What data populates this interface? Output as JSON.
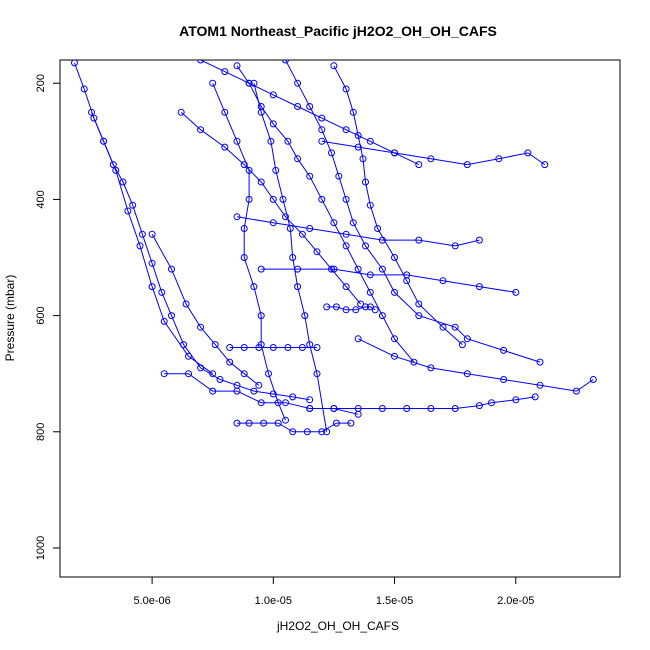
{
  "chart_data": {
    "type": "scatter",
    "title": "ATOM1 Northeast_Pacific jH2O2_OH_OH_CAFS",
    "xlabel": "jH2O2_OH_OH_CAFS",
    "ylabel": "Pressure (mbar)",
    "xlim": [
      1.2e-06,
      2.43e-05
    ],
    "ylim": [
      1050,
      160
    ],
    "y_reversed": true,
    "x_ticks": [
      {
        "value": 5e-06,
        "label": "5.0e-06"
      },
      {
        "value": 1e-05,
        "label": "1.0e-05"
      },
      {
        "value": 1.5e-05,
        "label": "1.5e-05"
      },
      {
        "value": 2e-05,
        "label": "2.0e-05"
      }
    ],
    "y_ticks": [
      {
        "value": 200,
        "label": "200"
      },
      {
        "value": 400,
        "label": "400"
      },
      {
        "value": 600,
        "label": "600"
      },
      {
        "value": 800,
        "label": "800"
      },
      {
        "value": 1000,
        "label": "1000"
      }
    ],
    "marker": "open-circle",
    "connect_lines": true,
    "grid": false,
    "color": "#0000ff",
    "series": [
      {
        "x": [
          1.8e-06,
          2.2e-06,
          2.6e-06,
          3e-06,
          3.4e-06,
          3.8e-06,
          4.2e-06,
          4.6e-06,
          5e-06,
          5.4e-06,
          5.8e-06,
          6.3e-06,
          7e-06,
          7.8e-06,
          8.5e-06,
          9.2e-06,
          1e-05,
          1.08e-05,
          1.15e-05
        ],
        "y": [
          165,
          210,
          260,
          300,
          340,
          370,
          410,
          460,
          510,
          560,
          600,
          650,
          690,
          710,
          720,
          730,
          735,
          740,
          745
        ]
      },
      {
        "x": [
          2.5e-06,
          3e-06,
          3.5e-06,
          4e-06,
          4.5e-06,
          5e-06,
          5.5e-06,
          6.5e-06,
          7.5e-06
        ],
        "y": [
          250,
          300,
          350,
          420,
          480,
          550,
          610,
          670,
          700
        ]
      },
      {
        "x": [
          7.5e-06,
          8e-06,
          8.5e-06,
          9e-06,
          9e-06,
          8.8e-06,
          8.8e-06,
          9.2e-06,
          9.5e-06,
          9.5e-06,
          9.8e-06,
          1.02e-05,
          1.05e-05
        ],
        "y": [
          200,
          250,
          300,
          350,
          400,
          450,
          500,
          550,
          600,
          650,
          700,
          750,
          780
        ]
      },
      {
        "x": [
          9.2e-06,
          9.5e-06,
          9.9e-06,
          1.01e-05,
          1.04e-05,
          1.07e-05,
          1.08e-05,
          1.1e-05,
          1.13e-05,
          1.15e-05,
          1.18e-05,
          1.22e-05
        ],
        "y": [
          200,
          250,
          300,
          350,
          400,
          450,
          500,
          550,
          600,
          650,
          700,
          800
        ]
      },
      {
        "x": [
          8.5e-06,
          9e-06,
          9.5e-06,
          1e-05,
          1.06e-05,
          1.1e-05,
          1.15e-05,
          1.2e-05,
          1.25e-05,
          1.3e-05,
          1.35e-05,
          1.4e-05,
          1.45e-05,
          1.5e-05,
          1.58e-05
        ],
        "y": [
          170,
          200,
          240,
          270,
          300,
          330,
          360,
          400,
          440,
          480,
          520,
          560,
          600,
          640,
          680
        ]
      },
      {
        "x": [
          1.05e-05,
          1.1e-05,
          1.15e-05,
          1.2e-05,
          1.24e-05,
          1.27e-05,
          1.3e-05,
          1.33e-05,
          1.38e-05,
          1.45e-05,
          1.5e-05,
          1.6e-05,
          1.75e-05,
          1.8e-05,
          1.95e-05,
          2.1e-05
        ],
        "y": [
          160,
          200,
          240,
          280,
          320,
          360,
          400,
          440,
          480,
          520,
          560,
          600,
          620,
          640,
          660,
          680
        ]
      },
      {
        "x": [
          1.25e-05,
          1.3e-05,
          1.33e-05,
          1.35e-05,
          1.37e-05,
          1.38e-05,
          1.4e-05,
          1.43e-05,
          1.5e-05,
          1.55e-05,
          1.6e-05,
          1.7e-05,
          1.78e-05
        ],
        "y": [
          170,
          210,
          250,
          290,
          330,
          370,
          410,
          450,
          500,
          540,
          580,
          620,
          650
        ]
      },
      {
        "x": [
          6.2e-06,
          7e-06,
          8e-06,
          8.8e-06,
          9.5e-06,
          1e-05,
          1.05e-05,
          1.12e-05,
          1.18e-05,
          1.24e-05,
          1.3e-05,
          1.36e-05
        ],
        "y": [
          250,
          280,
          310,
          340,
          370,
          400,
          430,
          460,
          490,
          520,
          550,
          580
        ]
      },
      {
        "x": [
          5e-06,
          5.8e-06,
          6.4e-06,
          7e-06,
          7.6e-06,
          8.2e-06,
          8.8e-06,
          9.4e-06
        ],
        "y": [
          460,
          520,
          580,
          620,
          650,
          680,
          700,
          720
        ]
      },
      {
        "x": [
          1.35e-05,
          1.5e-05,
          1.65e-05,
          1.8e-05,
          1.95e-05,
          2.1e-05,
          2.25e-05,
          2.32e-05
        ],
        "y": [
          640,
          670,
          690,
          700,
          710,
          720,
          730,
          710
        ]
      },
      {
        "x": [
          1.15e-05,
          1.25e-05,
          1.35e-05,
          1.45e-05,
          1.55e-05,
          1.65e-05,
          1.75e-05,
          1.85e-05,
          1.9e-05,
          2e-05,
          2.08e-05
        ],
        "y": [
          760,
          760,
          760,
          760,
          760,
          760,
          760,
          755,
          750,
          745,
          740
        ]
      },
      {
        "x": [
          5.5e-06,
          6.5e-06,
          7.5e-06,
          8.5e-06,
          9.5e-06,
          1.05e-05,
          1.15e-05,
          1.25e-05,
          1.35e-05
        ],
        "y": [
          700,
          700,
          730,
          730,
          750,
          750,
          760,
          760,
          770
        ]
      },
      {
        "x": [
          8.2e-06,
          8.8e-06,
          9.4e-06,
          1e-05,
          1.06e-05,
          1.12e-05,
          1.18e-05
        ],
        "y": [
          655,
          655,
          655,
          655,
          655,
          655,
          655
        ]
      },
      {
        "x": [
          8.5e-06,
          9e-06,
          9.6e-06,
          1.02e-05,
          1.08e-05,
          1.14e-05,
          1.2e-05,
          1.26e-05,
          1.32e-05
        ],
        "y": [
          785,
          785,
          785,
          785,
          800,
          800,
          800,
          785,
          785
        ]
      },
      {
        "x": [
          1.22e-05,
          1.26e-05,
          1.3e-05,
          1.34e-05,
          1.38e-05,
          1.4e-05,
          1.42e-05
        ],
        "y": [
          585,
          585,
          590,
          590,
          585,
          585,
          590
        ]
      },
      {
        "x": [
          1.2e-05,
          1.35e-05,
          1.5e-05,
          1.65e-05,
          1.8e-05,
          1.93e-05,
          2.05e-05,
          2.12e-05
        ],
        "y": [
          300,
          310,
          320,
          330,
          340,
          330,
          320,
          340
        ]
      },
      {
        "x": [
          8.5e-06,
          1e-05,
          1.15e-05,
          1.3e-05,
          1.45e-05,
          1.6e-05,
          1.75e-05,
          1.85e-05
        ],
        "y": [
          430,
          440,
          450,
          460,
          470,
          470,
          480,
          470
        ]
      },
      {
        "x": [
          9.5e-06,
          1.1e-05,
          1.25e-05,
          1.4e-05,
          1.55e-05,
          1.7e-05,
          1.85e-05,
          2e-05
        ],
        "y": [
          520,
          520,
          520,
          530,
          530,
          540,
          550,
          560
        ]
      },
      {
        "x": [
          7e-06,
          8e-06,
          9e-06,
          1e-05,
          1.1e-05,
          1.2e-05,
          1.3e-05,
          1.4e-05,
          1.5e-05,
          1.6e-05
        ],
        "y": [
          160,
          180,
          200,
          220,
          240,
          260,
          280,
          300,
          320,
          340
        ]
      }
    ]
  }
}
